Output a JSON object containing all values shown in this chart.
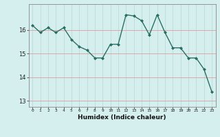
{
  "x": [
    0,
    1,
    2,
    3,
    4,
    5,
    6,
    7,
    8,
    9,
    10,
    11,
    12,
    13,
    14,
    15,
    16,
    17,
    18,
    19,
    20,
    21,
    22,
    23
  ],
  "y": [
    16.2,
    15.9,
    16.1,
    15.9,
    16.1,
    15.6,
    15.3,
    15.15,
    14.82,
    14.82,
    15.4,
    15.4,
    16.65,
    16.6,
    16.4,
    15.8,
    16.65,
    15.9,
    15.25,
    15.25,
    14.82,
    14.82,
    14.35,
    13.4
  ],
  "line_color": "#2a6e62",
  "marker_color": "#2a6e62",
  "bg_color": "#d5efef",
  "grid_x_color": "#c0dcdc",
  "grid_y_color": "#dba8a8",
  "xlabel": "Humidex (Indice chaleur)",
  "ylim": [
    12.75,
    17.1
  ],
  "yticks": [
    13,
    14,
    15,
    16
  ],
  "xticks": [
    0,
    1,
    2,
    3,
    4,
    5,
    6,
    7,
    8,
    9,
    10,
    11,
    12,
    13,
    14,
    15,
    16,
    17,
    18,
    19,
    20,
    21,
    22,
    23
  ]
}
